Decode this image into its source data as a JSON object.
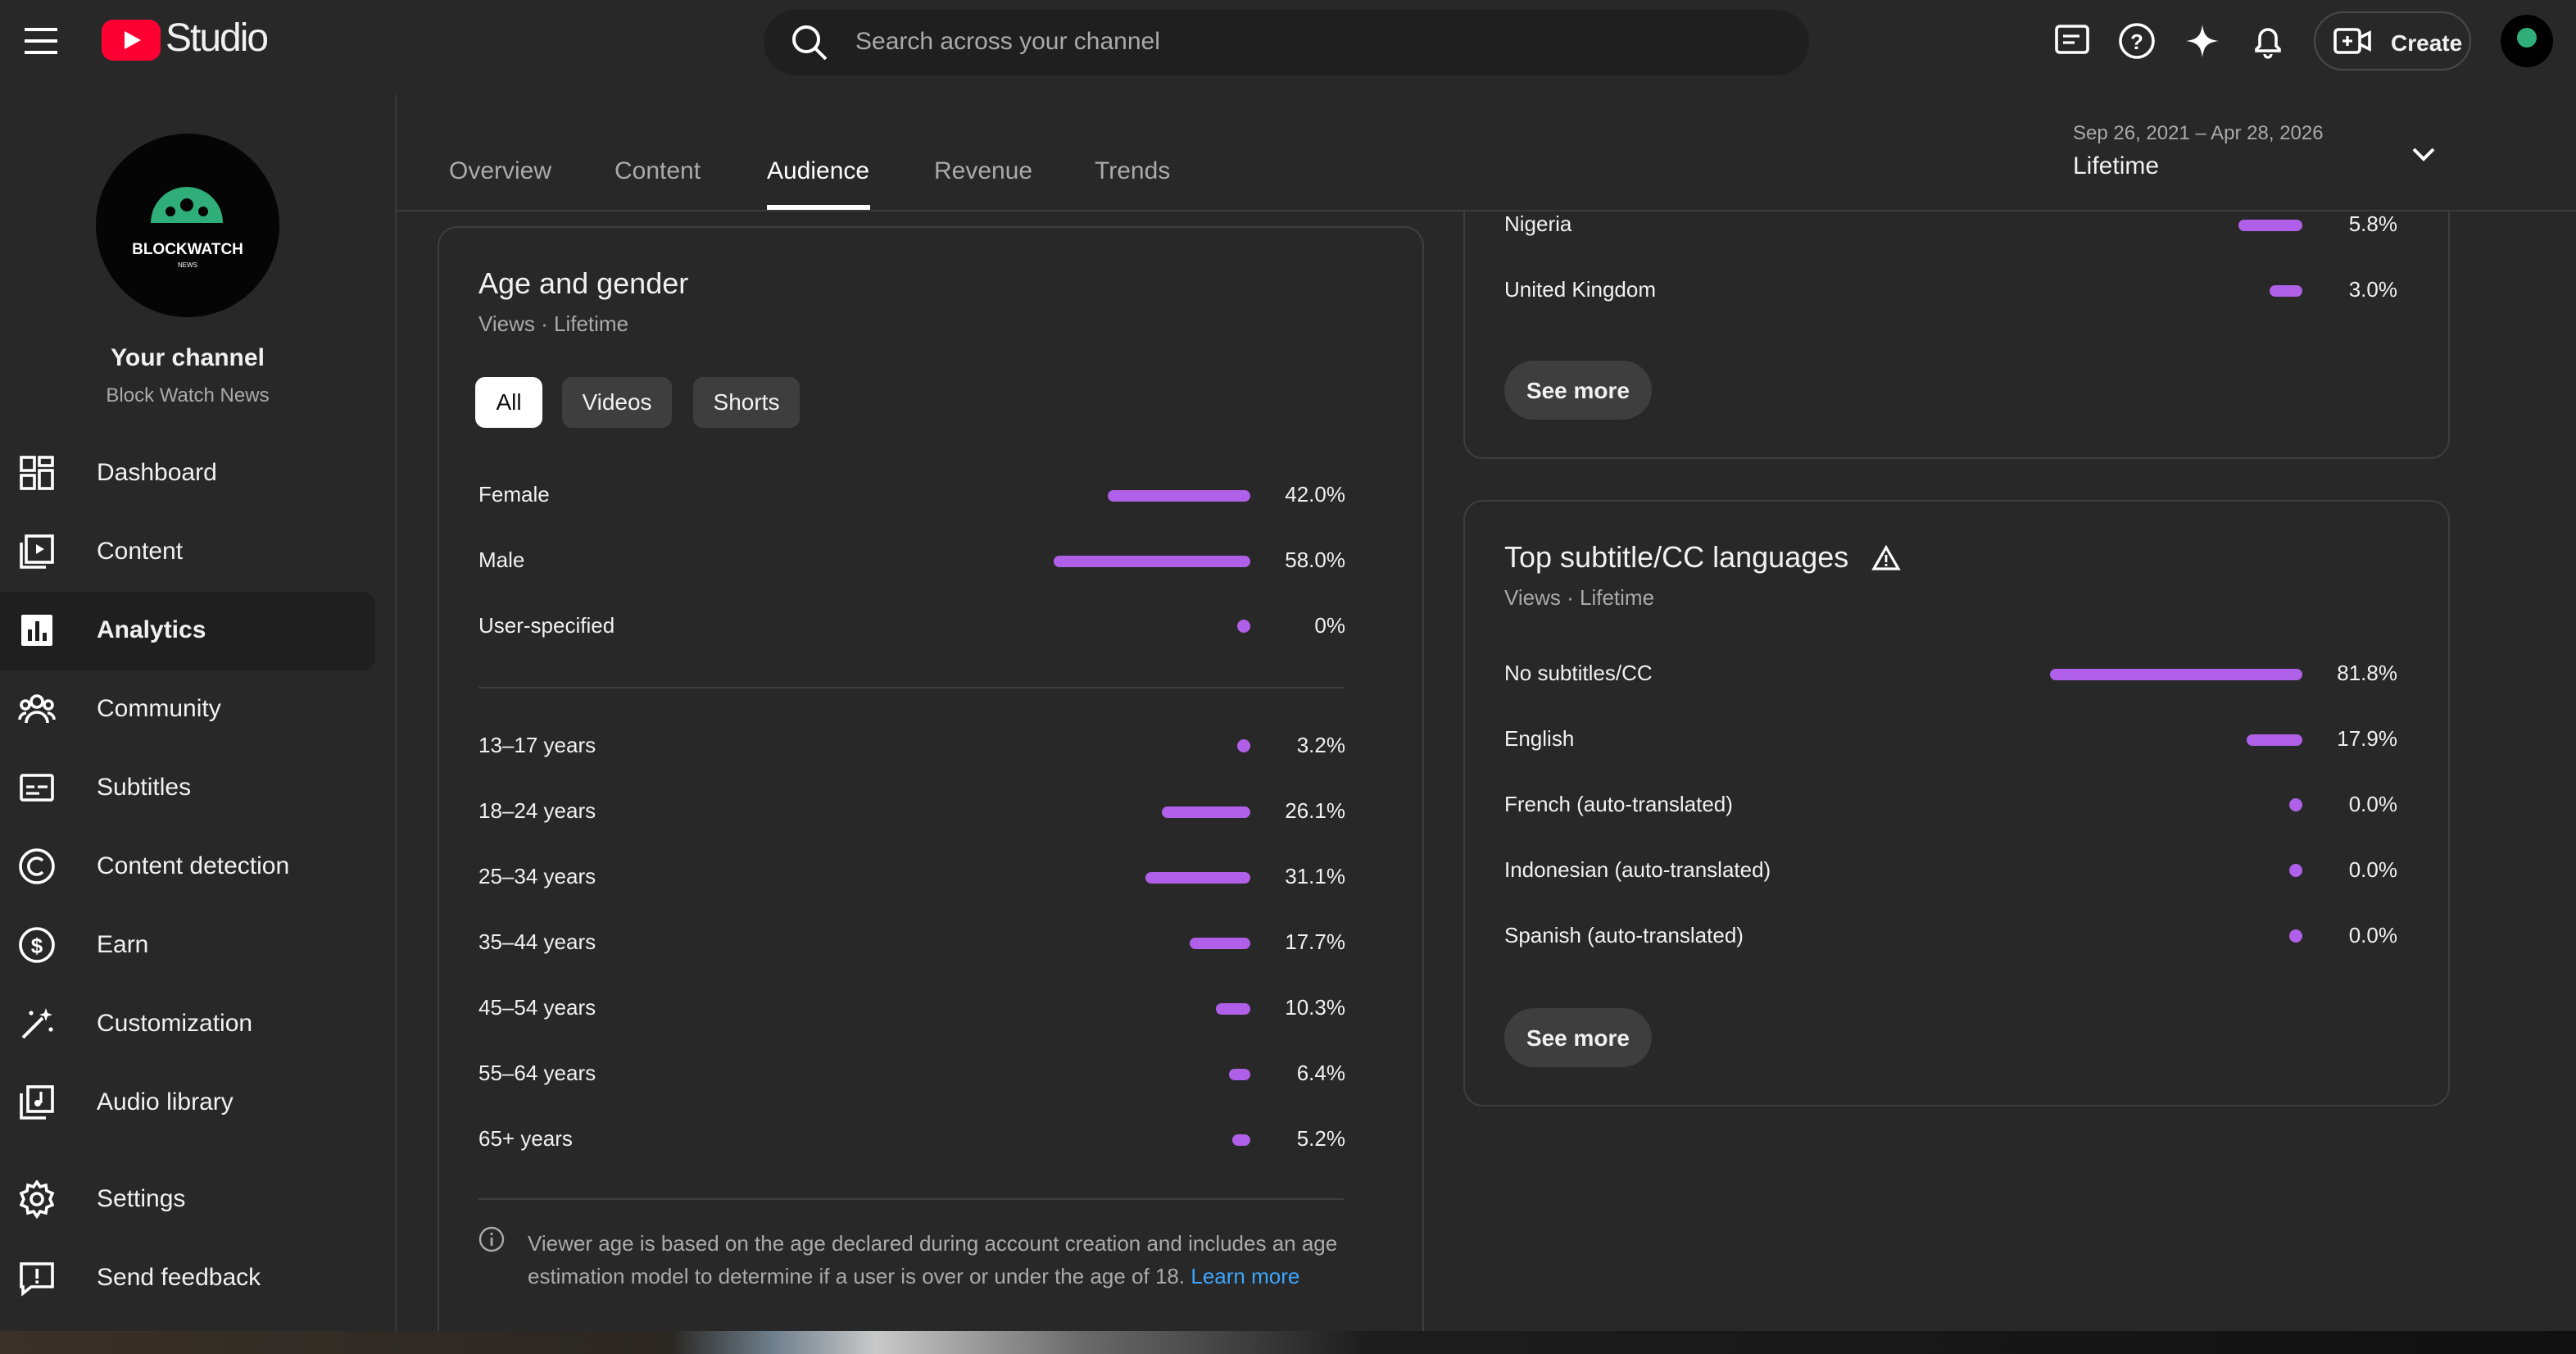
{
  "header": {
    "logo_text": "Studio",
    "search_placeholder": "Search across your channel",
    "create": "Create"
  },
  "sidebar": {
    "logo_text": "BLOCKWATCH",
    "logo_subtext": "NEWS",
    "channel_title": "Your channel",
    "channel_name": "Block Watch News",
    "nav": [
      "Dashboard",
      "Content",
      "Analytics",
      "Community",
      "Subtitles",
      "Content detection",
      "Earn",
      "Customization",
      "Audio library"
    ],
    "active_nav": 2,
    "footer_nav": [
      "Settings",
      "Send feedback"
    ]
  },
  "tabs": [
    "Overview",
    "Content",
    "Audience",
    "Revenue",
    "Trends"
  ],
  "active_tab": 2,
  "date_range": {
    "range": "Sep 26, 2021 – Apr 28, 2026",
    "label": "Lifetime"
  },
  "age_gender": {
    "title": "Age and gender",
    "subtitle": "Views · Lifetime",
    "filters": [
      "All",
      "Videos",
      "Shorts"
    ],
    "active_filter": 0,
    "gender": [
      {
        "label": "Female",
        "value": 42.0,
        "value_label": "42.0%"
      },
      {
        "label": "Male",
        "value": 58.0,
        "value_label": "58.0%"
      },
      {
        "label": "User-specified",
        "value": 0,
        "value_label": "0%"
      }
    ],
    "age": [
      {
        "label": "13–17 years",
        "value": 3.2,
        "value_label": "3.2%"
      },
      {
        "label": "18–24 years",
        "value": 26.1,
        "value_label": "26.1%"
      },
      {
        "label": "25–34 years",
        "value": 31.1,
        "value_label": "31.1%"
      },
      {
        "label": "35–44 years",
        "value": 17.7,
        "value_label": "17.7%"
      },
      {
        "label": "45–54 years",
        "value": 10.3,
        "value_label": "10.3%"
      },
      {
        "label": "55–64 years",
        "value": 6.4,
        "value_label": "6.4%"
      },
      {
        "label": "65+ years",
        "value": 5.2,
        "value_label": "5.2%"
      }
    ],
    "note": "Viewer age is based on the age declared during account creation and includes an age estimation model to determine if a user is over or under the age of 18.",
    "learn_more": "Learn more"
  },
  "countries": {
    "rows": [
      {
        "label": "Nigeria",
        "value": 5.8,
        "value_label": "5.8%"
      },
      {
        "label": "United Kingdom",
        "value": 3.0,
        "value_label": "3.0%"
      }
    ],
    "see_more": "See more"
  },
  "subtitles": {
    "title": "Top subtitle/CC languages",
    "subtitle": "Views · Lifetime",
    "rows": [
      {
        "label": "No subtitles/CC",
        "value": 81.8,
        "value_label": "81.8%"
      },
      {
        "label": "English",
        "value": 17.9,
        "value_label": "17.9%"
      },
      {
        "label": "French (auto-translated)",
        "value": 0.0,
        "value_label": "0.0%"
      },
      {
        "label": "Indonesian (auto-translated)",
        "value": 0.0,
        "value_label": "0.0%"
      },
      {
        "label": "Spanish (auto-translated)",
        "value": 0.0,
        "value_label": "0.0%"
      }
    ],
    "see_more": "See more"
  }
}
